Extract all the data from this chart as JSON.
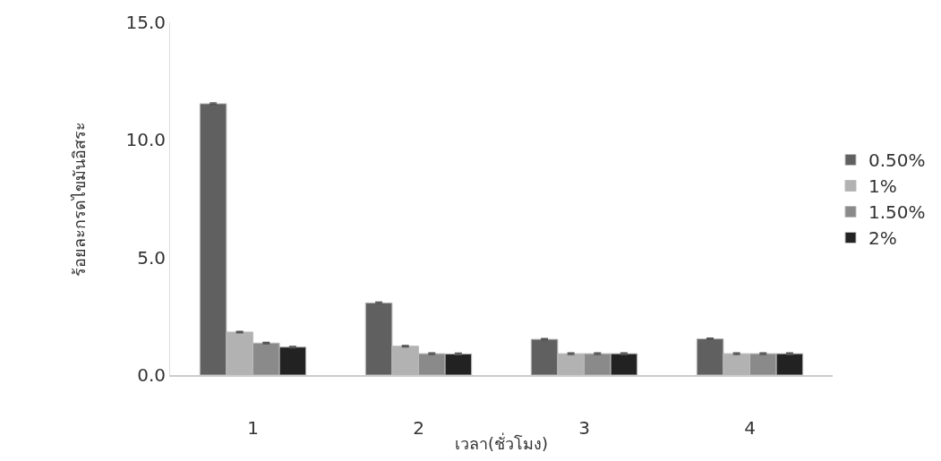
{
  "chart_data": {
    "type": "bar",
    "xlabel": "เวลา(ชั่วโมง)",
    "ylabel": "ร้อยละกรดไขมันอิสระ",
    "categories": [
      "1",
      "2",
      "3",
      "4"
    ],
    "series": [
      {
        "name": "0.50%",
        "color": "#606060",
        "values": [
          11.54,
          3.07,
          1.52,
          1.54
        ],
        "errors": [
          0.03,
          0.03,
          0.03,
          0.03
        ]
      },
      {
        "name": "1%",
        "color": "#b2b2b2",
        "values": [
          1.83,
          1.23,
          0.91,
          0.91
        ],
        "errors": [
          0.03,
          0.03,
          0.03,
          0.03
        ]
      },
      {
        "name": "1.50%",
        "color": "#8a8a8a",
        "values": [
          1.36,
          0.91,
          0.91,
          0.91
        ],
        "errors": [
          0.03,
          0.03,
          0.03,
          0.03
        ]
      },
      {
        "name": "2%",
        "color": "#222222",
        "values": [
          1.19,
          0.9,
          0.91,
          0.91
        ],
        "errors": [
          0.03,
          0.03,
          0.03,
          0.03
        ]
      }
    ],
    "ylim": [
      0,
      15
    ],
    "yticks": [
      {
        "value": 0,
        "label": "0.0"
      },
      {
        "value": 5,
        "label": "5.0"
      },
      {
        "value": 10,
        "label": "10.0"
      },
      {
        "value": 15,
        "label": "15.0"
      }
    ],
    "legend": "right"
  }
}
